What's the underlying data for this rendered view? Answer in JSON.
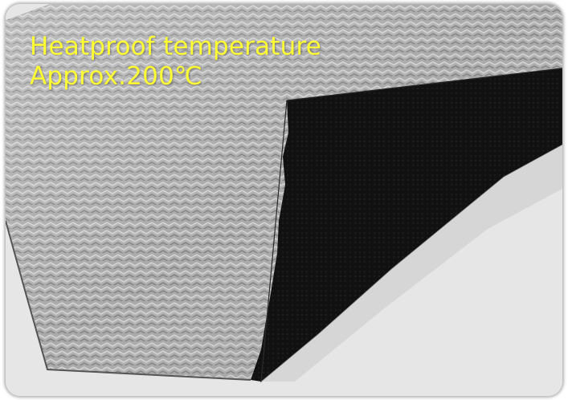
{
  "caption": {
    "line1": "Heatproof temperature",
    "line2": "Approx.200℃"
  },
  "colors": {
    "caption_text": "#ffff33",
    "backdrop": "#e6e6e6",
    "silver_fabric": "#a8a8a8",
    "black_backing": "#0f0f0f"
  },
  "scene": {
    "subject": "aluminized-fabric-sheet",
    "features": [
      "silver-herringbone-surface",
      "black-backing-corner-folded"
    ]
  }
}
